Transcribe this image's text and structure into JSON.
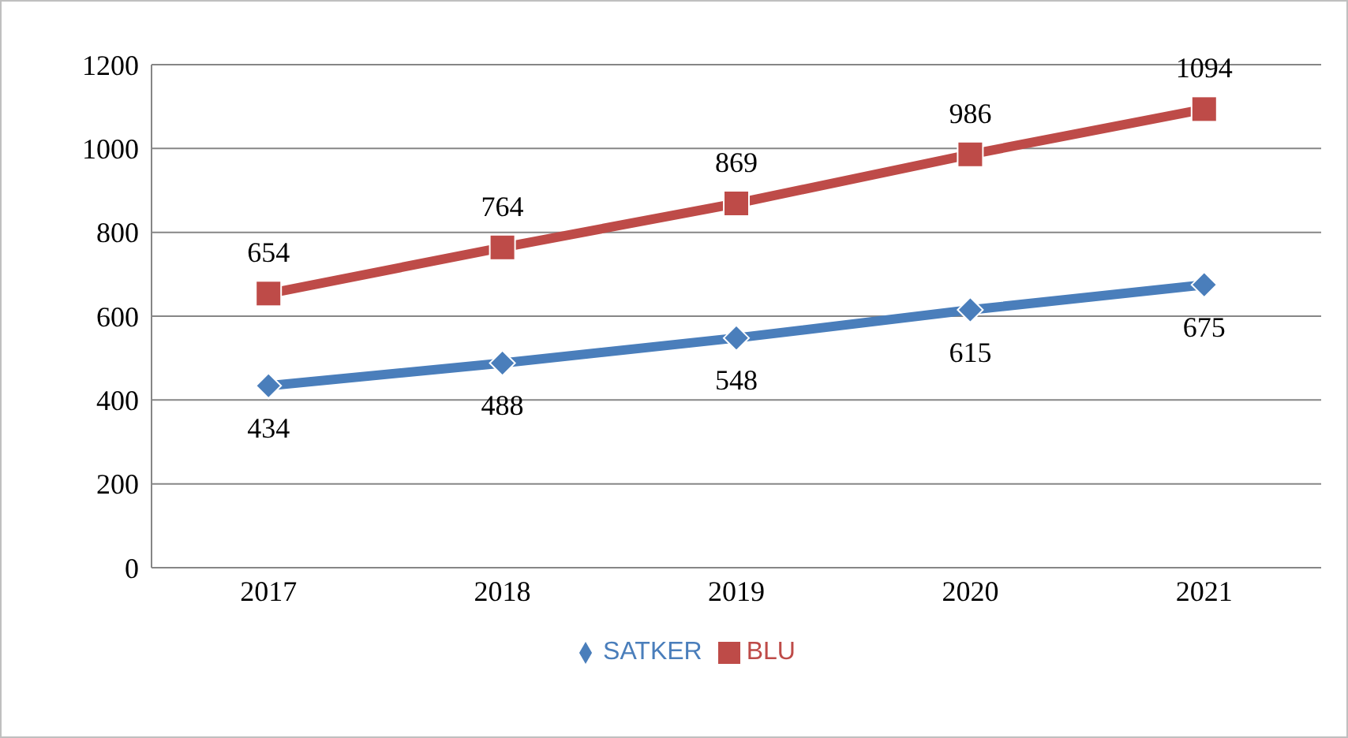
{
  "chart_data": {
    "type": "line",
    "categories": [
      "2017",
      "2018",
      "2019",
      "2020",
      "2021"
    ],
    "series": [
      {
        "name": "SATKER",
        "color": "#4a7ebb",
        "values": [
          434,
          488,
          548,
          615,
          675
        ],
        "marker": "diamond"
      },
      {
        "name": "BLU",
        "color": "#be4b48",
        "values": [
          654,
          764,
          869,
          986,
          1094
        ],
        "marker": "square"
      }
    ],
    "ylim": [
      0,
      1200
    ],
    "yticks": [
      0,
      200,
      400,
      600,
      800,
      1000,
      1200
    ],
    "grid": "y",
    "legend": "bottom",
    "data_labels": true
  }
}
